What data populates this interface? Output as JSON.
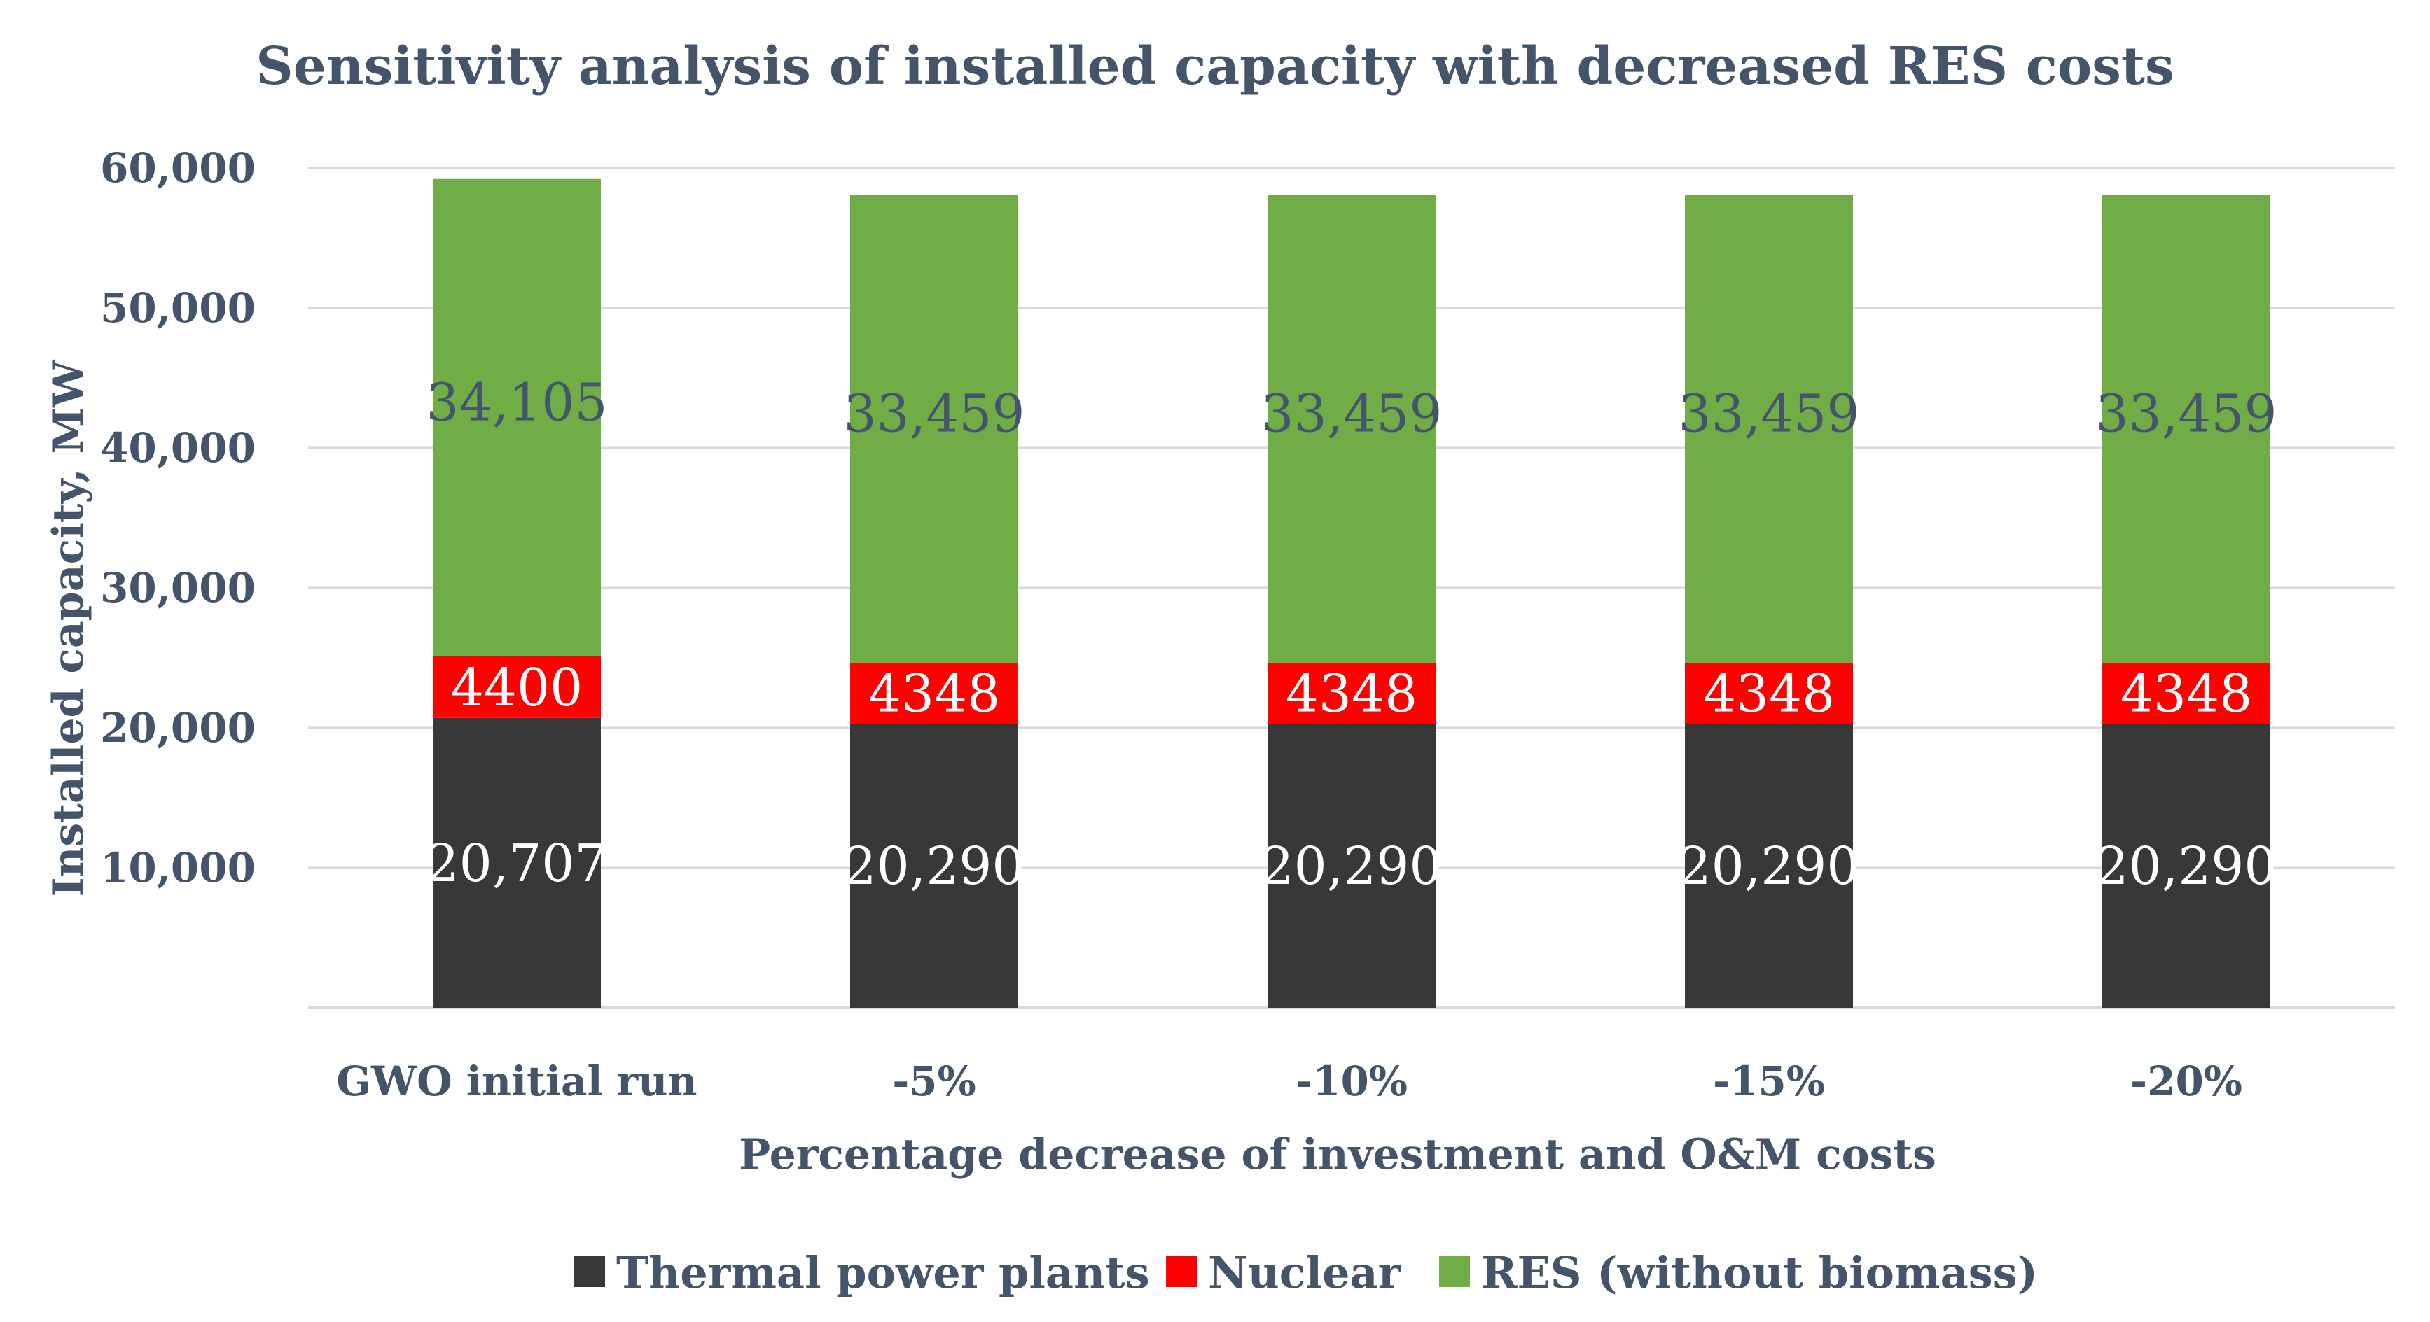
{
  "chart_data": {
    "type": "bar",
    "stacked": true,
    "title": "Sensitivity analysis of installed capacity with decreased RES costs",
    "xlabel": "Percentage decrease of investment and O&M costs",
    "ylabel": "Installed capacity, MW",
    "categories": [
      "GWO initial run",
      "-5%",
      "-10%",
      "-15%",
      "-20%"
    ],
    "ylim": [
      0,
      60000
    ],
    "yticks": [
      10000,
      20000,
      30000,
      40000,
      50000,
      60000
    ],
    "ytick_labels": [
      "10,000",
      "20,000",
      "30,000",
      "40,000",
      "50,000",
      "60,000"
    ],
    "grid": true,
    "legend_position": "bottom",
    "series": [
      {
        "name": "Thermal power plants",
        "color": "#383838",
        "label_color": "#ffffff",
        "values": [
          20707,
          20290,
          20290,
          20290,
          20290
        ],
        "labels": [
          "20,707",
          "20,290",
          "20,290",
          "20,290",
          "20,290"
        ]
      },
      {
        "name": "Nuclear",
        "color": "#ff0000",
        "label_color": "#ffffff",
        "values": [
          4400,
          4348,
          4348,
          4348,
          4348
        ],
        "labels": [
          "4400",
          "4348",
          "4348",
          "4348",
          "4348"
        ]
      },
      {
        "name": "RES (without biomass)",
        "color": "#70ad47",
        "label_color": "#44546a",
        "values": [
          34105,
          33459,
          33459,
          33459,
          33459
        ],
        "labels": [
          "34,105",
          "33,459",
          "33,459",
          "33,459",
          "33,459"
        ]
      }
    ]
  }
}
